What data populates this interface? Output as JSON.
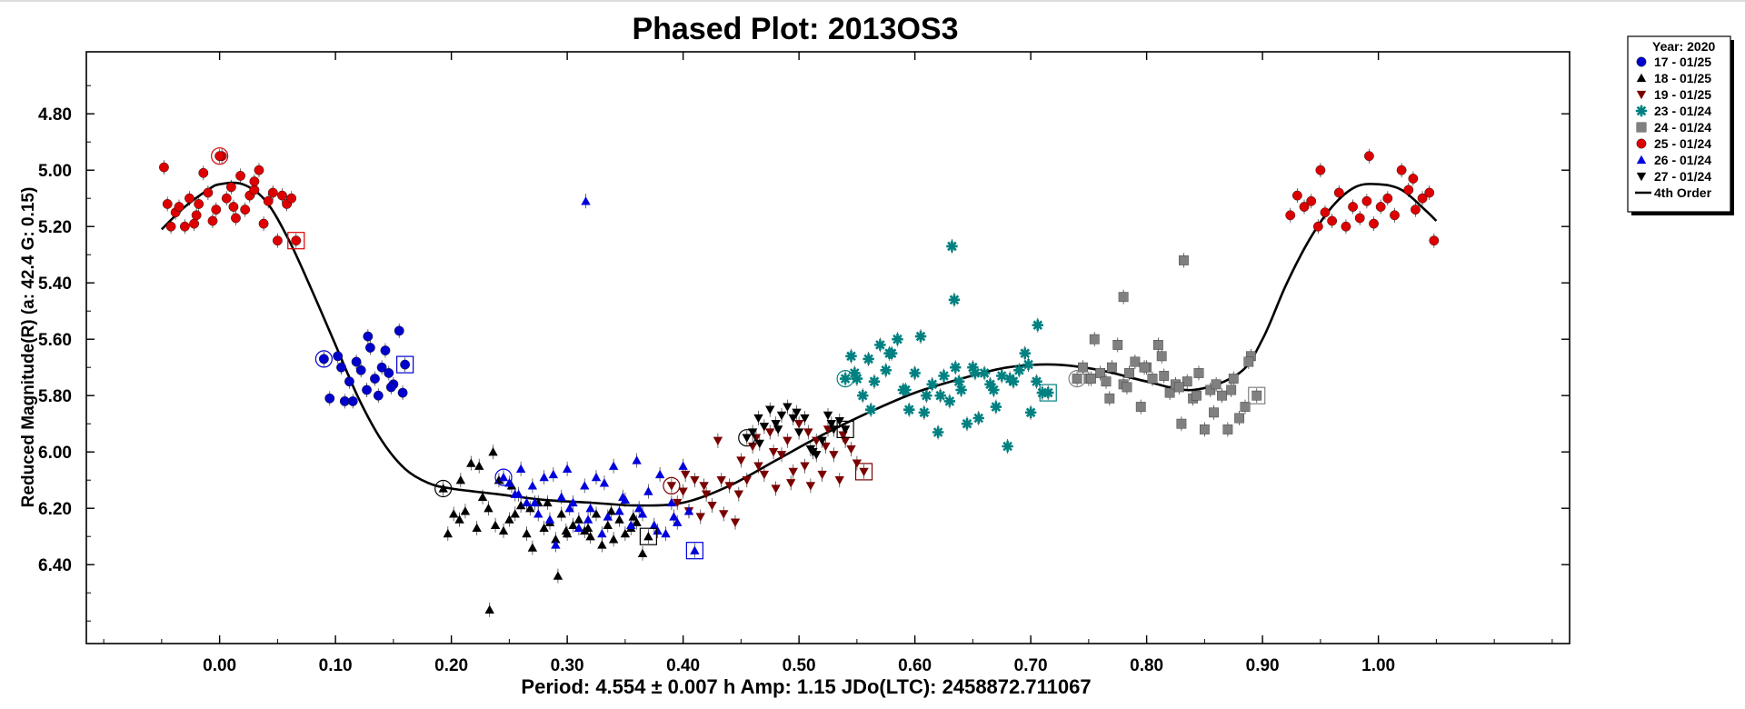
{
  "chart_data": {
    "type": "scatter",
    "title": "Phased Plot: 2013OS3",
    "ylabel": "Reduced Magnitude(R)   (a: 42.4  G: 0.15)",
    "xlabel": "",
    "footer": "Period: 4.554 ± 0.007 h   Amp: 1.15      JDo(LTC): 2458872.711067",
    "xlim": [
      -0.115,
      1.165
    ],
    "ylim": [
      6.68,
      4.58
    ],
    "y_inverted": true,
    "x_ticks": [
      0.0,
      0.1,
      0.2,
      0.3,
      0.4,
      0.5,
      0.6,
      0.7,
      0.8,
      0.9,
      1.0
    ],
    "x_tick_labels": [
      "0.00",
      "0.10",
      "0.20",
      "0.30",
      "0.40",
      "0.50",
      "0.60",
      "0.70",
      "0.80",
      "0.90",
      "1.00"
    ],
    "y_ticks": [
      4.8,
      5.0,
      5.2,
      5.4,
      5.6,
      5.8,
      6.0,
      6.2,
      6.4
    ],
    "y_tick_labels": [
      "4.80",
      "5.00",
      "5.20",
      "5.40",
      "5.60",
      "5.80",
      "6.00",
      "6.20",
      "6.40"
    ],
    "grid": false,
    "legend": {
      "placement": "outside-top-right",
      "header": "Year: 2020",
      "entries": [
        {
          "label": "17 - 01/25",
          "marker": "circle",
          "color": "#0000cc"
        },
        {
          "label": "18 - 01/25",
          "marker": "triangle-up",
          "color": "#000000"
        },
        {
          "label": "19 - 01/25",
          "marker": "triangle-down",
          "color": "#7a0000"
        },
        {
          "label": "23 - 01/24",
          "marker": "asterisk",
          "color": "#008080"
        },
        {
          "label": "24 - 01/24",
          "marker": "square",
          "color": "#808080"
        },
        {
          "label": "25 - 01/24",
          "marker": "circle",
          "color": "#dd0000"
        },
        {
          "label": "26 - 01/24",
          "marker": "triangle-up",
          "color": "#0000dd"
        },
        {
          "label": "27 - 01/24",
          "marker": "triangle-down",
          "color": "#000000"
        },
        {
          "label": "4th Order",
          "marker": "line",
          "color": "#000000"
        }
      ]
    },
    "fit_curve": {
      "name": "4th Order",
      "x": [
        -0.05,
        -0.03,
        -0.01,
        0.0,
        0.02,
        0.04,
        0.06,
        0.08,
        0.1,
        0.12,
        0.14,
        0.16,
        0.18,
        0.2,
        0.24,
        0.28,
        0.32,
        0.36,
        0.4,
        0.44,
        0.48,
        0.52,
        0.56,
        0.6,
        0.64,
        0.68,
        0.72,
        0.76,
        0.8,
        0.84,
        0.88,
        0.9,
        0.92,
        0.94,
        0.96,
        0.98,
        1.0,
        1.02,
        1.04,
        1.05
      ],
      "y": [
        5.21,
        5.13,
        5.07,
        5.05,
        5.05,
        5.11,
        5.25,
        5.43,
        5.62,
        5.81,
        5.96,
        6.06,
        6.11,
        6.13,
        6.15,
        6.17,
        6.18,
        6.19,
        6.18,
        6.12,
        6.03,
        5.94,
        5.86,
        5.79,
        5.74,
        5.7,
        5.69,
        5.71,
        5.75,
        5.78,
        5.72,
        5.6,
        5.41,
        5.25,
        5.13,
        5.06,
        5.05,
        5.07,
        5.14,
        5.18
      ]
    },
    "series": [
      {
        "name": "17 - 01/25",
        "marker": "circle",
        "color": "#0000cc",
        "x": [
          0.09,
          0.095,
          0.102,
          0.108,
          0.112,
          0.118,
          0.122,
          0.127,
          0.13,
          0.134,
          0.137,
          0.14,
          0.143,
          0.146,
          0.15,
          0.155,
          0.158,
          0.16,
          0.105,
          0.115,
          0.128,
          0.148
        ],
        "y": [
          5.67,
          5.81,
          5.66,
          5.82,
          5.75,
          5.68,
          5.71,
          5.78,
          5.63,
          5.74,
          5.8,
          5.7,
          5.64,
          5.72,
          5.76,
          5.57,
          5.79,
          5.69,
          5.7,
          5.82,
          5.59,
          5.77
        ],
        "highlight": [
          {
            "x": 0.09,
            "y": 5.67,
            "shape": "circle"
          },
          {
            "x": 0.16,
            "y": 5.69,
            "shape": "square"
          }
        ]
      },
      {
        "name": "18 - 01/25",
        "marker": "triangle-up",
        "color": "#000000",
        "x": [
          0.193,
          0.197,
          0.202,
          0.207,
          0.212,
          0.217,
          0.222,
          0.227,
          0.232,
          0.236,
          0.241,
          0.245,
          0.25,
          0.255,
          0.26,
          0.265,
          0.27,
          0.275,
          0.28,
          0.285,
          0.29,
          0.295,
          0.3,
          0.305,
          0.31,
          0.315,
          0.32,
          0.325,
          0.33,
          0.335,
          0.34,
          0.345,
          0.35,
          0.355,
          0.36,
          0.365,
          0.37,
          0.208,
          0.224,
          0.238,
          0.252,
          0.268,
          0.283,
          0.299,
          0.318,
          0.338,
          0.357,
          0.233,
          0.292
        ],
        "y": [
          6.13,
          6.29,
          6.22,
          6.24,
          6.21,
          6.04,
          6.27,
          6.16,
          6.2,
          6.0,
          6.1,
          6.28,
          6.24,
          6.22,
          6.19,
          6.29,
          6.34,
          6.18,
          6.27,
          6.25,
          6.31,
          6.22,
          6.29,
          6.26,
          6.24,
          6.28,
          6.3,
          6.22,
          6.33,
          6.26,
          6.31,
          6.24,
          6.29,
          6.27,
          6.25,
          6.36,
          6.3,
          6.1,
          6.05,
          6.26,
          6.12,
          6.2,
          6.18,
          6.28,
          6.27,
          6.21,
          6.23,
          6.56,
          6.44
        ],
        "highlight": [
          {
            "x": 0.193,
            "y": 6.13,
            "shape": "circle"
          },
          {
            "x": 0.37,
            "y": 6.3,
            "shape": "square"
          }
        ]
      },
      {
        "name": "19 - 01/25",
        "marker": "triangle-down",
        "color": "#7a0000",
        "x": [
          0.39,
          0.395,
          0.4,
          0.405,
          0.41,
          0.415,
          0.42,
          0.425,
          0.43,
          0.435,
          0.44,
          0.445,
          0.45,
          0.455,
          0.46,
          0.465,
          0.47,
          0.475,
          0.48,
          0.485,
          0.49,
          0.495,
          0.5,
          0.505,
          0.51,
          0.515,
          0.52,
          0.525,
          0.53,
          0.535,
          0.54,
          0.545,
          0.55,
          0.556,
          0.402,
          0.418,
          0.433,
          0.448,
          0.463,
          0.478,
          0.493,
          0.508,
          0.523,
          0.538
        ],
        "y": [
          6.12,
          6.18,
          6.14,
          6.21,
          6.1,
          6.23,
          6.15,
          6.19,
          5.96,
          6.22,
          6.12,
          6.25,
          6.03,
          6.1,
          5.98,
          6.05,
          6.08,
          5.93,
          6.13,
          6.01,
          5.96,
          6.07,
          5.9,
          6.05,
          6.12,
          5.96,
          6.08,
          5.92,
          6.01,
          6.1,
          5.96,
          5.99,
          6.04,
          6.07,
          6.08,
          6.12,
          6.1,
          6.15,
          5.95,
          6.0,
          6.11,
          5.93,
          5.98,
          5.94
        ],
        "highlight": [
          {
            "x": 0.39,
            "y": 6.12,
            "shape": "circle"
          },
          {
            "x": 0.556,
            "y": 6.07,
            "shape": "square"
          }
        ]
      },
      {
        "name": "23 - 01/24",
        "marker": "asterisk",
        "color": "#008080",
        "x": [
          0.54,
          0.545,
          0.55,
          0.555,
          0.56,
          0.565,
          0.57,
          0.575,
          0.58,
          0.585,
          0.59,
          0.595,
          0.6,
          0.605,
          0.61,
          0.615,
          0.62,
          0.625,
          0.63,
          0.635,
          0.64,
          0.645,
          0.65,
          0.655,
          0.66,
          0.665,
          0.67,
          0.675,
          0.68,
          0.685,
          0.69,
          0.695,
          0.7,
          0.705,
          0.71,
          0.715,
          0.548,
          0.562,
          0.578,
          0.592,
          0.608,
          0.622,
          0.638,
          0.652,
          0.668,
          0.682,
          0.698,
          0.632,
          0.634,
          0.706
        ],
        "y": [
          5.74,
          5.66,
          5.74,
          5.8,
          5.67,
          5.75,
          5.62,
          5.71,
          5.65,
          5.6,
          5.78,
          5.85,
          5.72,
          5.59,
          5.8,
          5.76,
          5.93,
          5.73,
          5.82,
          5.7,
          5.78,
          5.9,
          5.7,
          5.88,
          5.72,
          5.76,
          5.84,
          5.73,
          5.98,
          5.75,
          5.71,
          5.65,
          5.86,
          5.75,
          5.79,
          5.79,
          5.72,
          5.85,
          5.65,
          5.78,
          5.86,
          5.8,
          5.75,
          5.72,
          5.78,
          5.74,
          5.69,
          5.27,
          5.46,
          5.55
        ],
        "highlight": [
          {
            "x": 0.54,
            "y": 5.74,
            "shape": "circle"
          },
          {
            "x": 0.715,
            "y": 5.79,
            "shape": "square"
          }
        ]
      },
      {
        "name": "24 - 01/24",
        "marker": "square",
        "color": "#808080",
        "x": [
          0.74,
          0.745,
          0.75,
          0.755,
          0.76,
          0.765,
          0.77,
          0.775,
          0.78,
          0.785,
          0.79,
          0.795,
          0.8,
          0.805,
          0.81,
          0.815,
          0.82,
          0.825,
          0.83,
          0.835,
          0.84,
          0.845,
          0.85,
          0.855,
          0.86,
          0.865,
          0.87,
          0.875,
          0.88,
          0.885,
          0.89,
          0.895,
          0.752,
          0.768,
          0.783,
          0.798,
          0.813,
          0.828,
          0.843,
          0.858,
          0.873,
          0.888,
          0.78,
          0.832
        ],
        "y": [
          5.74,
          5.7,
          5.74,
          5.6,
          5.72,
          5.75,
          5.7,
          5.62,
          5.76,
          5.72,
          5.68,
          5.84,
          5.7,
          5.74,
          5.62,
          5.73,
          5.79,
          5.76,
          5.9,
          5.75,
          5.81,
          5.72,
          5.92,
          5.78,
          5.76,
          5.8,
          5.92,
          5.74,
          5.88,
          5.84,
          5.66,
          5.8,
          5.74,
          5.81,
          5.77,
          5.7,
          5.66,
          5.77,
          5.8,
          5.86,
          5.78,
          5.68,
          5.45,
          5.32
        ],
        "highlight": [
          {
            "x": 0.74,
            "y": 5.74,
            "shape": "circle"
          },
          {
            "x": 0.895,
            "y": 5.8,
            "shape": "square"
          }
        ]
      },
      {
        "name": "25 - 01/24",
        "marker": "circle",
        "color": "#dd0000",
        "x": [
          -0.048,
          -0.045,
          -0.042,
          -0.038,
          -0.035,
          -0.03,
          -0.026,
          -0.022,
          -0.018,
          -0.014,
          -0.01,
          -0.006,
          -0.003,
          0.002,
          0.006,
          0.01,
          0.014,
          0.018,
          0.022,
          0.026,
          0.03,
          0.034,
          0.038,
          0.042,
          0.046,
          0.05,
          0.054,
          0.058,
          0.062,
          0.066,
          0.0,
          0.03,
          -0.02,
          0.012,
          0.924,
          0.93,
          0.936,
          0.942,
          0.948,
          0.954,
          0.96,
          0.966,
          0.972,
          0.978,
          0.984,
          0.99,
          0.996,
          1.002,
          1.008,
          1.014,
          1.02,
          1.026,
          1.032,
          1.038,
          1.044,
          1.048,
          0.95,
          0.992,
          1.03
        ],
        "y": [
          4.99,
          5.12,
          5.2,
          5.15,
          5.13,
          5.2,
          5.1,
          5.19,
          5.12,
          5.01,
          5.08,
          5.18,
          5.14,
          4.95,
          5.1,
          5.06,
          5.17,
          5.02,
          5.14,
          5.09,
          5.07,
          5.0,
          5.19,
          5.11,
          5.08,
          5.25,
          5.09,
          5.12,
          5.1,
          5.25,
          4.95,
          5.04,
          5.16,
          5.13,
          5.16,
          5.09,
          5.13,
          5.11,
          5.2,
          5.15,
          5.18,
          5.08,
          5.2,
          5.13,
          5.17,
          5.11,
          5.19,
          5.13,
          5.1,
          5.16,
          5.0,
          5.07,
          5.14,
          5.1,
          5.08,
          5.25,
          5.0,
          4.95,
          5.03
        ],
        "highlight": [
          {
            "x": 0.0,
            "y": 4.95,
            "shape": "circle"
          },
          {
            "x": 0.066,
            "y": 5.25,
            "shape": "square"
          }
        ]
      },
      {
        "name": "26 - 01/24",
        "marker": "triangle-up",
        "color": "#0000dd",
        "x": [
          0.245,
          0.25,
          0.255,
          0.26,
          0.265,
          0.27,
          0.275,
          0.28,
          0.285,
          0.29,
          0.295,
          0.3,
          0.305,
          0.31,
          0.315,
          0.32,
          0.325,
          0.33,
          0.335,
          0.34,
          0.345,
          0.35,
          0.355,
          0.36,
          0.365,
          0.37,
          0.375,
          0.38,
          0.385,
          0.39,
          0.395,
          0.4,
          0.405,
          0.41,
          0.258,
          0.272,
          0.288,
          0.302,
          0.318,
          0.332,
          0.348,
          0.362,
          0.378,
          0.392,
          0.316
        ],
        "y": [
          6.09,
          6.11,
          6.15,
          6.06,
          6.18,
          6.12,
          6.22,
          6.09,
          6.24,
          6.33,
          6.16,
          6.06,
          6.18,
          6.27,
          6.12,
          6.2,
          6.09,
          6.29,
          6.23,
          6.05,
          6.21,
          6.17,
          6.26,
          6.03,
          6.22,
          6.14,
          6.26,
          6.08,
          6.29,
          6.18,
          6.25,
          6.05,
          6.21,
          6.35,
          6.15,
          6.18,
          6.08,
          6.2,
          6.24,
          6.11,
          6.16,
          6.2,
          6.28,
          6.23,
          5.11
        ],
        "highlight": [
          {
            "x": 0.245,
            "y": 6.09,
            "shape": "circle"
          },
          {
            "x": 0.41,
            "y": 6.35,
            "shape": "square"
          }
        ]
      },
      {
        "name": "27 - 01/24",
        "marker": "triangle-down",
        "color": "#000000",
        "x": [
          0.455,
          0.46,
          0.465,
          0.47,
          0.475,
          0.48,
          0.485,
          0.49,
          0.495,
          0.5,
          0.505,
          0.51,
          0.515,
          0.52,
          0.525,
          0.53,
          0.535,
          0.54,
          0.466,
          0.482,
          0.498,
          0.512,
          0.528
        ],
        "y": [
          5.95,
          5.93,
          5.88,
          5.91,
          5.85,
          5.9,
          5.87,
          5.84,
          5.88,
          5.93,
          5.88,
          5.99,
          6.01,
          5.96,
          5.87,
          5.92,
          5.89,
          5.92,
          5.97,
          5.92,
          5.86,
          6.0,
          5.9
        ],
        "highlight": [
          {
            "x": 0.455,
            "y": 5.95,
            "shape": "circle"
          },
          {
            "x": 0.54,
            "y": 5.92,
            "shape": "square"
          }
        ]
      }
    ]
  }
}
